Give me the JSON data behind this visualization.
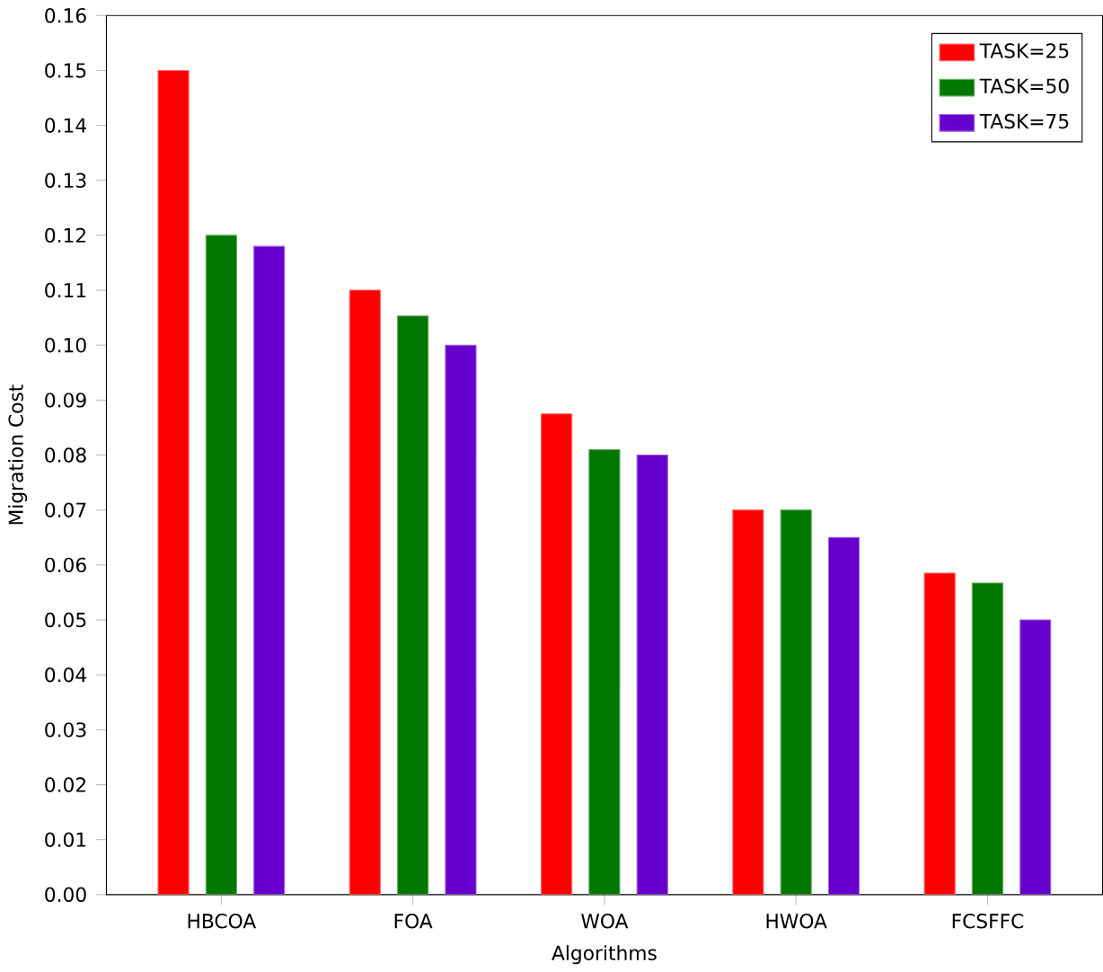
{
  "chart_data": {
    "type": "bar",
    "xlabel": "Algorithms",
    "ylabel": "Migration Cost",
    "categories": [
      "HBCOA",
      "FOA",
      "WOA",
      "HWOA",
      "FCSFFC"
    ],
    "series": [
      {
        "name": "TASK=25",
        "color": "#ff0000",
        "values": [
          0.15,
          0.11,
          0.0875,
          0.07,
          0.0585
        ]
      },
      {
        "name": "TASK=50",
        "color": "#007700",
        "values": [
          0.12,
          0.1053,
          0.081,
          0.07,
          0.0567
        ]
      },
      {
        "name": "TASK=75",
        "color": "#6600cc",
        "values": [
          0.118,
          0.1,
          0.08,
          0.065,
          0.05
        ]
      }
    ],
    "ylim": [
      0,
      0.16
    ],
    "yticks": [
      {
        "value": 0,
        "label": "0.00"
      },
      0.01,
      0.02,
      0.03,
      0.04,
      0.05,
      0.06,
      0.07,
      0.08,
      0.09,
      {
        "value": 0.1,
        "label": "0.10"
      },
      0.11,
      0.12,
      0.13,
      0.14,
      0.15,
      0.16
    ],
    "legend": "top right",
    "grid": false
  }
}
